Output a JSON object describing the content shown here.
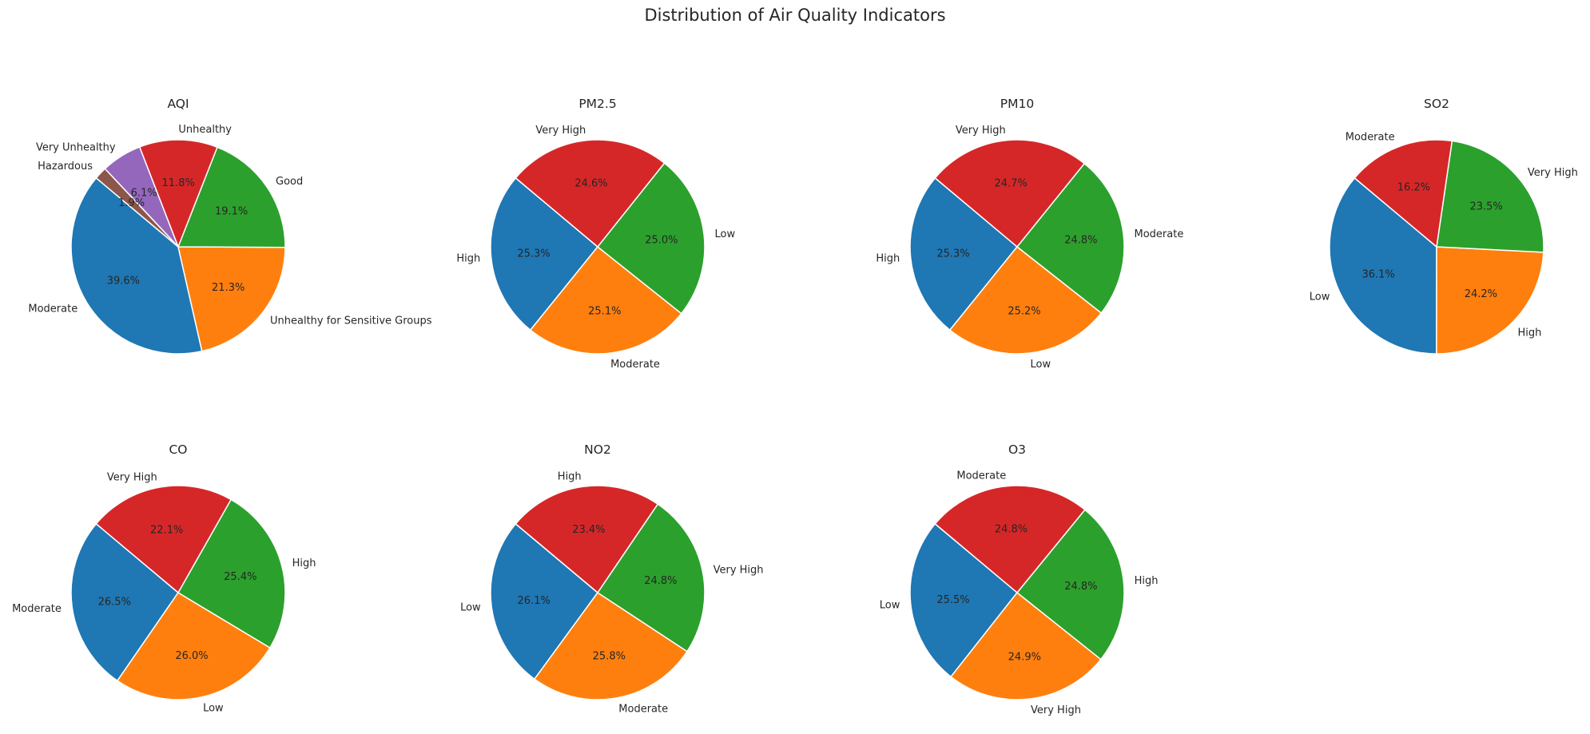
{
  "figure": {
    "title": "Distribution of Air Quality Indicators"
  },
  "chart_data": [
    {
      "type": "pie",
      "title": "AQI",
      "labels": [
        "Moderate",
        "Unhealthy for Sensitive Groups",
        "Good",
        "Unhealthy",
        "Very Unhealthy",
        "Hazardous"
      ],
      "values": [
        39.6,
        21.3,
        19.1,
        11.8,
        6.1,
        1.9
      ],
      "pct_labels": [
        "39.6%",
        "21.3%",
        "19.1%",
        "11.8%",
        "6.1%",
        "1.9%"
      ],
      "colors": [
        "#1f77b4",
        "#ff7f0e",
        "#2ca02c",
        "#d62728",
        "#9467bd",
        "#8c564b"
      ],
      "start_angle": 140
    },
    {
      "type": "pie",
      "title": "PM2.5",
      "labels": [
        "High",
        "Moderate",
        "Low",
        "Very High"
      ],
      "values": [
        25.3,
        25.1,
        25.0,
        24.6
      ],
      "pct_labels": [
        "25.3%",
        "25.1%",
        "25.0%",
        "24.6%"
      ],
      "colors": [
        "#1f77b4",
        "#ff7f0e",
        "#2ca02c",
        "#d62728"
      ],
      "start_angle": 140
    },
    {
      "type": "pie",
      "title": "PM10",
      "labels": [
        "High",
        "Low",
        "Moderate",
        "Very High"
      ],
      "values": [
        25.3,
        25.2,
        24.8,
        24.7
      ],
      "pct_labels": [
        "25.3%",
        "25.2%",
        "24.8%",
        "24.7%"
      ],
      "colors": [
        "#1f77b4",
        "#ff7f0e",
        "#2ca02c",
        "#d62728"
      ],
      "start_angle": 140
    },
    {
      "type": "pie",
      "title": "SO2",
      "labels": [
        "Low",
        "High",
        "Very High",
        "Moderate"
      ],
      "values": [
        36.1,
        24.2,
        23.5,
        16.2
      ],
      "pct_labels": [
        "36.1%",
        "24.2%",
        "23.5%",
        "16.2%"
      ],
      "colors": [
        "#1f77b4",
        "#ff7f0e",
        "#2ca02c",
        "#d62728"
      ],
      "start_angle": 140
    },
    {
      "type": "pie",
      "title": "CO",
      "labels": [
        "Moderate",
        "Low",
        "High",
        "Very High"
      ],
      "values": [
        26.5,
        26.0,
        25.4,
        22.1
      ],
      "pct_labels": [
        "26.5%",
        "26.0%",
        "25.4%",
        "22.1%"
      ],
      "colors": [
        "#1f77b4",
        "#ff7f0e",
        "#2ca02c",
        "#d62728"
      ],
      "start_angle": 140
    },
    {
      "type": "pie",
      "title": "NO2",
      "labels": [
        "Low",
        "Moderate",
        "Very High",
        "High"
      ],
      "values": [
        26.1,
        25.8,
        24.8,
        23.4
      ],
      "pct_labels": [
        "26.1%",
        "25.8%",
        "24.8%",
        "23.4%"
      ],
      "colors": [
        "#1f77b4",
        "#ff7f0e",
        "#2ca02c",
        "#d62728"
      ],
      "start_angle": 140
    },
    {
      "type": "pie",
      "title": "O3",
      "labels": [
        "Low",
        "Very High",
        "High",
        "Moderate"
      ],
      "values": [
        25.5,
        24.9,
        24.8,
        24.8
      ],
      "pct_labels": [
        "25.5%",
        "24.9%",
        "24.8%",
        "24.8%"
      ],
      "colors": [
        "#1f77b4",
        "#ff7f0e",
        "#2ca02c",
        "#d62728"
      ],
      "start_angle": 140
    }
  ]
}
